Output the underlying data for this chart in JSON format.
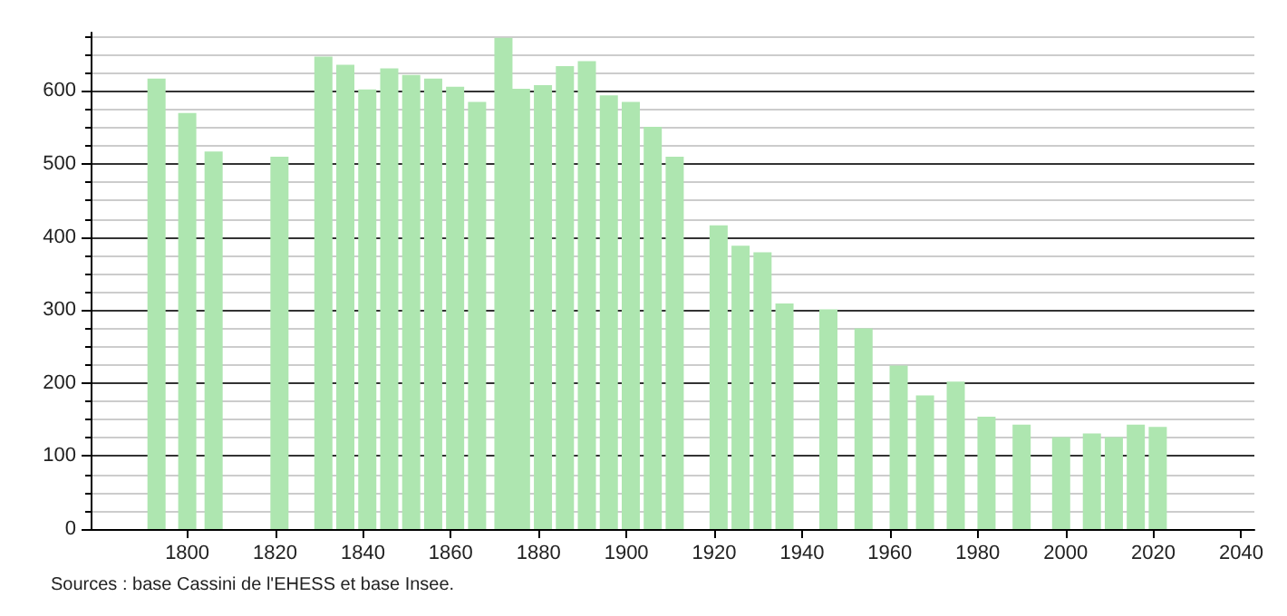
{
  "chart_data": {
    "type": "bar",
    "x": [
      1793,
      1800,
      1806,
      1821,
      1831,
      1836,
      1841,
      1846,
      1851,
      1856,
      1861,
      1866,
      1872,
      1876,
      1881,
      1886,
      1891,
      1896,
      1901,
      1906,
      1911,
      1921,
      1926,
      1931,
      1936,
      1946,
      1954,
      1962,
      1968,
      1975,
      1982,
      1990,
      1999,
      2006,
      2011,
      2016,
      2021
    ],
    "values": [
      617,
      570,
      517,
      510,
      647,
      636,
      602,
      631,
      622,
      617,
      606,
      585,
      673,
      603,
      608,
      634,
      641,
      594,
      585,
      551,
      510,
      416,
      388,
      379,
      309,
      301,
      275,
      224,
      183,
      202,
      154,
      143,
      126,
      131,
      126,
      143,
      140
    ],
    "color": "#aee6b0",
    "xlim": [
      1778,
      2043
    ],
    "xticks": [
      1800,
      1820,
      1840,
      1860,
      1880,
      1900,
      1920,
      1940,
      1960,
      1980,
      2000,
      2020,
      2040
    ],
    "ylim": [
      0,
      680
    ],
    "yticks": [
      0,
      100,
      200,
      300,
      400,
      500,
      600
    ],
    "grid": "y",
    "annotations": [
      "Sources : base Cassini de l'EHESS et base Insee."
    ]
  }
}
